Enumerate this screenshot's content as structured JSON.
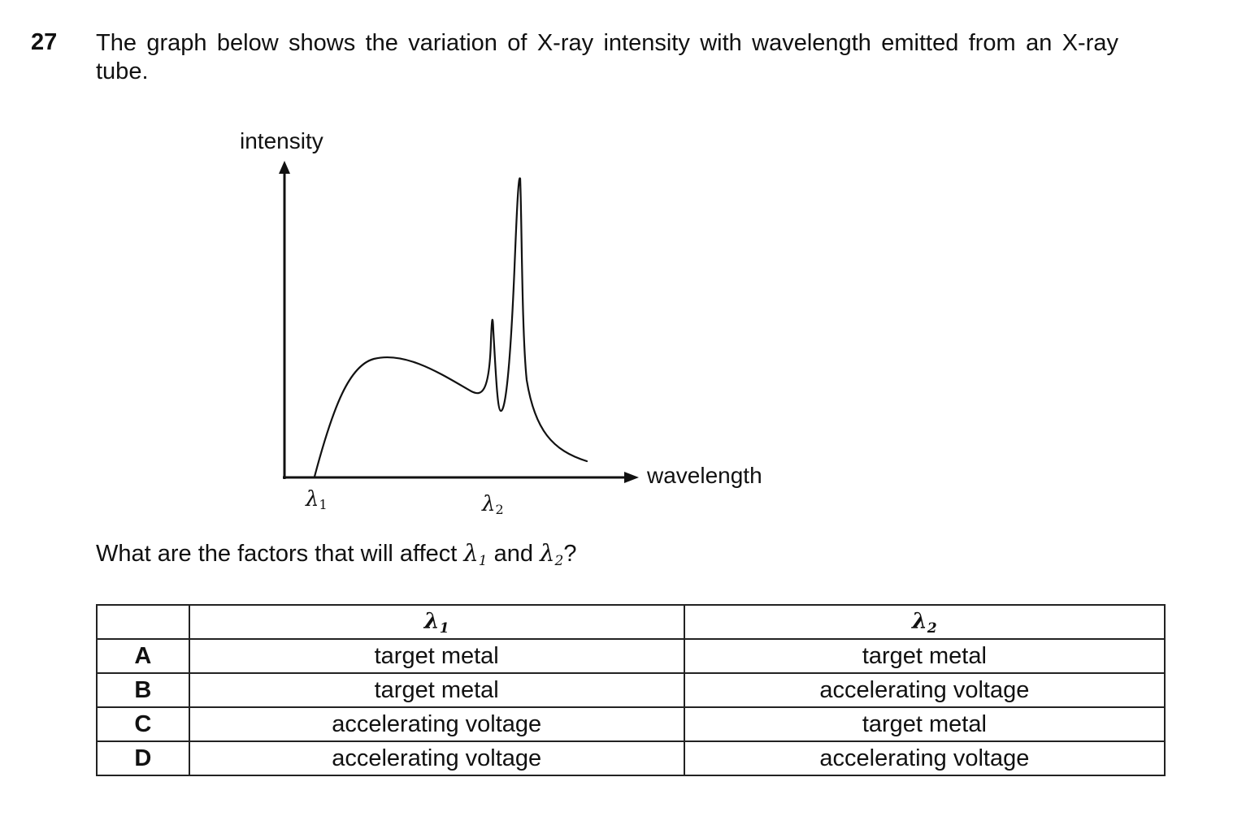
{
  "question": {
    "number": "27",
    "stem": "The graph below shows the variation of X-ray intensity with wavelength emitted from an X-ray tube.",
    "prompt_before": "What are the factors that will affect ",
    "prompt_mid": " and ",
    "prompt_after": "?"
  },
  "graph": {
    "y_axis_label": "intensity",
    "x_axis_label": "wavelength",
    "lambda_symbol": "λ",
    "marker_1_sub": "1",
    "marker_2_sub": "2"
  },
  "table": {
    "header": {
      "blank": "",
      "col1_symbol": "λ",
      "col1_sub": "1",
      "col2_symbol": "λ",
      "col2_sub": "2"
    },
    "rows": [
      {
        "letter": "A",
        "lambda1": "target metal",
        "lambda2": "target metal"
      },
      {
        "letter": "B",
        "lambda1": "target metal",
        "lambda2": "accelerating voltage"
      },
      {
        "letter": "C",
        "lambda1": "accelerating voltage",
        "lambda2": "target metal"
      },
      {
        "letter": "D",
        "lambda1": "accelerating voltage",
        "lambda2": "accelerating voltage"
      }
    ]
  }
}
